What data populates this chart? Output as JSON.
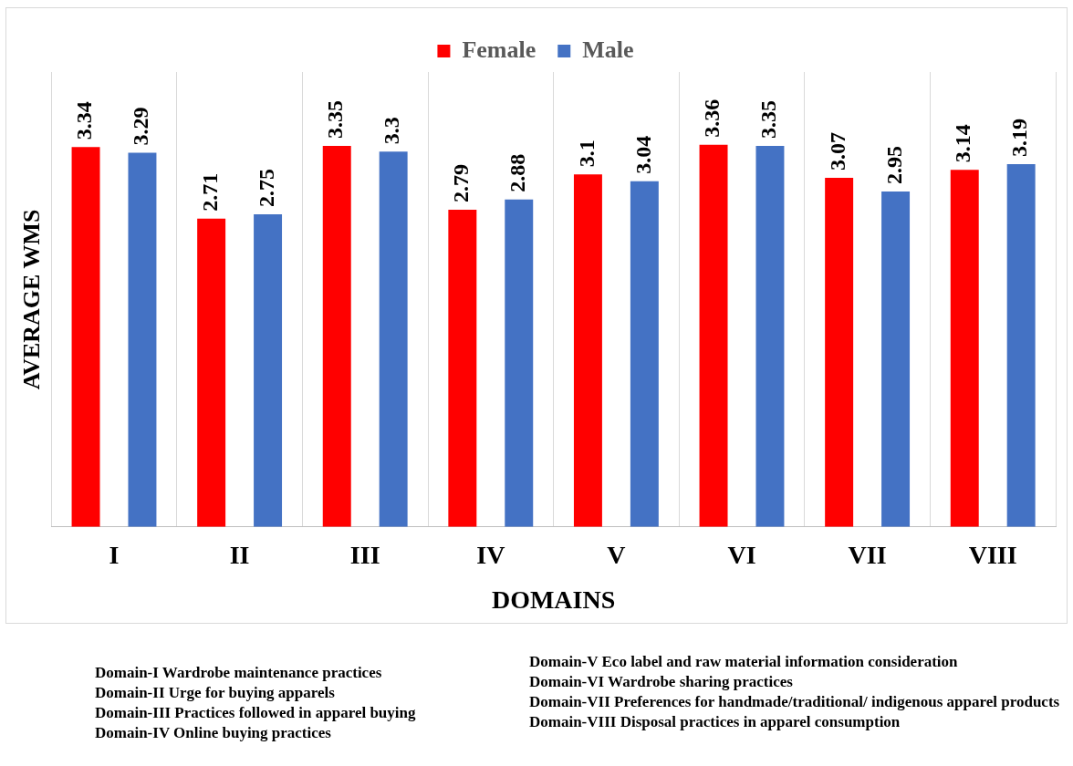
{
  "chart_data": {
    "type": "bar",
    "xlabel": "DOMAINS",
    "ylabel": "AVERAGE WMS",
    "categories": [
      "I",
      "II",
      "III",
      "IV",
      "V",
      "VI",
      "VII",
      "VIII"
    ],
    "series": [
      {
        "name": "Female",
        "color": "#ff0000",
        "values": [
          3.34,
          2.71,
          3.35,
          2.79,
          3.1,
          3.36,
          3.07,
          3.14
        ]
      },
      {
        "name": "Male",
        "color": "#4472c4",
        "values": [
          3.29,
          2.75,
          3.3,
          2.88,
          3.04,
          3.35,
          2.95,
          3.19
        ]
      }
    ],
    "data_labels": true,
    "grid": "x",
    "legend": "top",
    "tick_labels": "x",
    "annotations": [
      "Domain-I Wardrobe maintenance practices",
      "Domain-II Urge for buying apparels",
      "Domain-III Practices followed in apparel buying",
      "Domain-IV Online buying practices",
      "Domain-V Eco label and raw material information consideration",
      "Domain-VI Wardrobe sharing practices",
      "Domain-VII Preferences for handmade/traditional/ indigenous apparel products",
      "Domain-VIII Disposal practices in apparel consumption"
    ]
  }
}
